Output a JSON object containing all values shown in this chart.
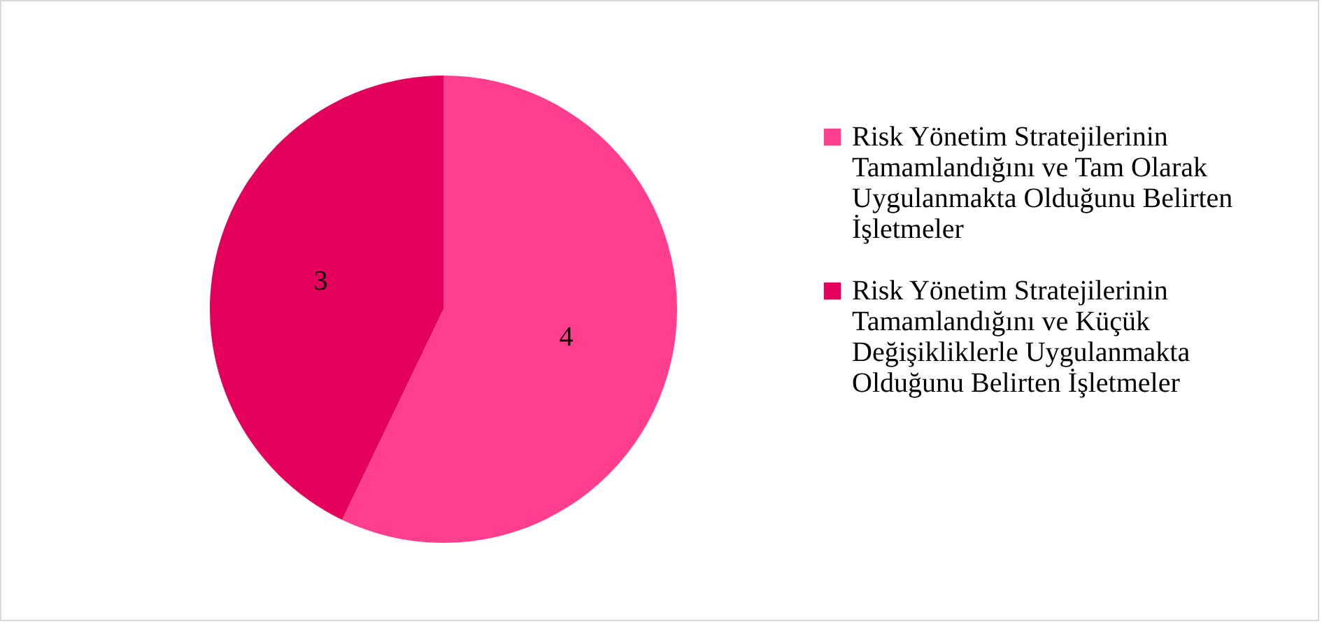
{
  "chart_data": {
    "type": "pie",
    "categories": [
      "Risk Yönetim Stratejilerinin Tamamlandığını ve Tam Olarak Uygulanmakta Olduğunu Belirten İşletmeler",
      "Risk Yönetim Stratejilerinin Tamamlandığını ve Küçük Değişikliklerle Uygulanmakta Olduğunu Belirten İşletmeler"
    ],
    "values": [
      4,
      3
    ],
    "colors": [
      "#ff3e8e",
      "#e4005a"
    ],
    "data_labels": true,
    "legend": "right"
  }
}
